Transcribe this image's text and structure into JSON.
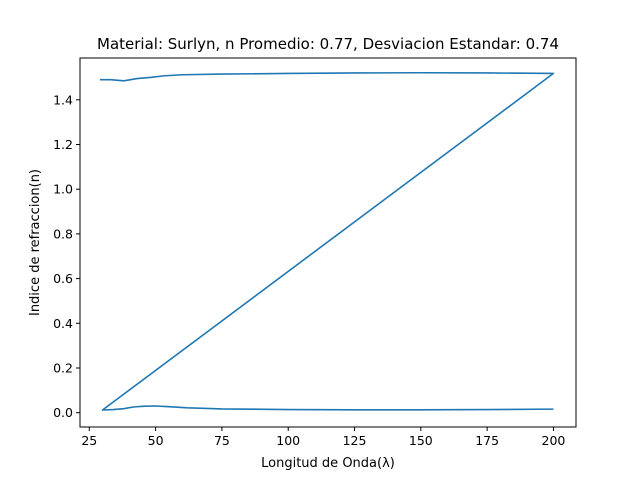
{
  "chart_data": {
    "type": "line",
    "title": "Material: Surlyn, n Promedio: 0.77, Desviacion Estandar: 0.74",
    "xlabel": "Longitud de Onda(λ)",
    "ylabel": "Indice de refraccion(n)",
    "xlim": [
      21.5,
      208.5
    ],
    "ylim": [
      -0.064,
      1.587
    ],
    "xticks": [
      25,
      50,
      75,
      100,
      125,
      150,
      175,
      200
    ],
    "yticks": [
      0.0,
      0.2,
      0.4,
      0.6,
      0.8,
      1.0,
      1.2,
      1.4
    ],
    "grid": false,
    "line_color": "#1f77b4",
    "series": [
      {
        "x": [
          29,
          33,
          38,
          43,
          48,
          53,
          60,
          75,
          100,
          125,
          150,
          175,
          200,
          30,
          34,
          38,
          42,
          46,
          50,
          55,
          62,
          75,
          100,
          125,
          150,
          175,
          200
        ],
        "y": [
          1.49,
          1.49,
          1.485,
          1.495,
          1.5,
          1.507,
          1.512,
          1.515,
          1.518,
          1.52,
          1.521,
          1.52,
          1.518,
          0.012,
          0.014,
          0.018,
          0.026,
          0.029,
          0.03,
          0.027,
          0.022,
          0.017,
          0.014,
          0.013,
          0.013,
          0.014,
          0.016
        ]
      }
    ]
  }
}
